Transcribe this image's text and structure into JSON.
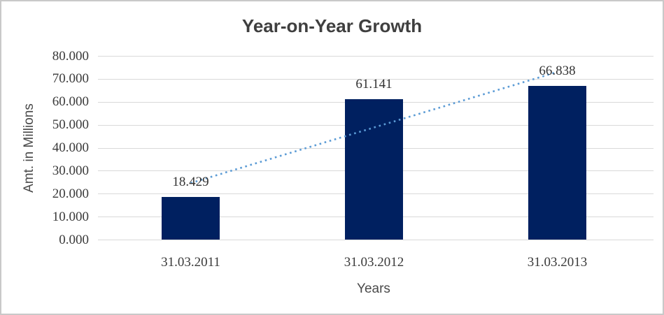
{
  "chart_data": {
    "type": "bar",
    "title": "Year-on-Year Growth",
    "categories": [
      "31.03.2011",
      "31.03.2012",
      "31.03.2013"
    ],
    "values": [
      18.429,
      61.141,
      66.838
    ],
    "data_labels": [
      "18.429",
      "61.141",
      "66.838"
    ],
    "xlabel": "Years",
    "ylabel": "Amt. in Millions",
    "ylim": [
      0,
      80
    ],
    "ytick_step": 10,
    "ytick_labels": [
      "0.000",
      "10.000",
      "20.000",
      "30.000",
      "40.000",
      "50.000",
      "60.000",
      "70.000",
      "80.000"
    ],
    "grid": true,
    "legend": false,
    "bar_color": "#002060",
    "gridline_color": "#d9d9d9",
    "trendline": {
      "type": "linear",
      "style": "dotted",
      "color": "#5b9bd5",
      "endpoint_values": [
        24.6,
        73.0
      ]
    }
  }
}
